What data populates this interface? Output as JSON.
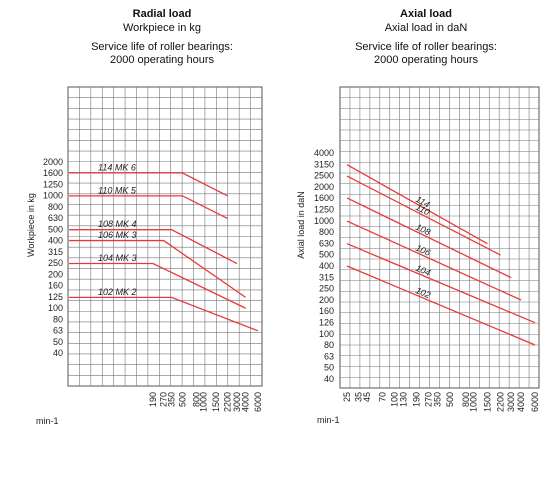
{
  "chart_data": [
    {
      "type": "line",
      "title": "Radial load",
      "subtitle": "Workpiece in kg",
      "note_line1": "Service life of roller bearings:",
      "note_line2": "2000 operating hours",
      "ylabel": "Workpiece in kg",
      "xlabel": "min-1",
      "yscale": "log",
      "xscale": "log",
      "ylim": [
        40,
        2000
      ],
      "x_ticks": [
        "190",
        "270",
        "350",
        "500",
        "800",
        "1000",
        "1500",
        "2200",
        "3000",
        "4000",
        "6000"
      ],
      "y_ticks": [
        "2000",
        "1600",
        "1250",
        "1000",
        "800",
        "630",
        "500",
        "400",
        "315",
        "250",
        "200",
        "160",
        "125",
        "100",
        "80",
        "63",
        "50",
        "40"
      ],
      "color": "#e83a3a",
      "series": [
        {
          "name": "114 MK 6",
          "x": [
            null,
            500,
            2200
          ],
          "y": [
            1600,
            1600,
            1000
          ]
        },
        {
          "name": "110 MK 5",
          "x": [
            null,
            500,
            2200
          ],
          "y": [
            1000,
            1000,
            630
          ]
        },
        {
          "name": "108 MK 4",
          "x": [
            null,
            350,
            3000
          ],
          "y": [
            500,
            500,
            250
          ]
        },
        {
          "name": "106 MK 3",
          "x": [
            null,
            270,
            4000
          ],
          "y": [
            400,
            400,
            125
          ]
        },
        {
          "name": "104 MK 3",
          "x": [
            null,
            190,
            4000
          ],
          "y": [
            250,
            250,
            100
          ]
        },
        {
          "name": "102 MK 2",
          "x": [
            null,
            350,
            6000
          ],
          "y": [
            125,
            125,
            63
          ]
        }
      ]
    },
    {
      "type": "line",
      "title": "Axial load",
      "subtitle": "Axial load in daN",
      "note_line1": "Service life of roller bearings:",
      "note_line2": "2000 operating hours",
      "ylabel": "Axial load in daN",
      "xlabel": "min-1",
      "yscale": "log",
      "xscale": "log",
      "ylim": [
        40,
        4000
      ],
      "x_ticks": [
        "25",
        "35",
        "45",
        "70",
        "100",
        "130",
        "190",
        "270",
        "350",
        "500",
        "800",
        "1000",
        "1500",
        "2200",
        "3000",
        "4000",
        "6000"
      ],
      "y_ticks": [
        "4000",
        "3150",
        "2500",
        "2000",
        "1600",
        "1250",
        "1000",
        "800",
        "630",
        "500",
        "400",
        "315",
        "250",
        "200",
        "160",
        "126",
        "100",
        "80",
        "63",
        "50",
        "40"
      ],
      "color": "#e83a3a",
      "series": [
        {
          "name": "114",
          "x": [
            25,
            1500
          ],
          "y": [
            3150,
            630
          ]
        },
        {
          "name": "110",
          "x": [
            25,
            2200
          ],
          "y": [
            2500,
            500
          ]
        },
        {
          "name": "108",
          "x": [
            25,
            3000
          ],
          "y": [
            1600,
            315
          ]
        },
        {
          "name": "106",
          "x": [
            25,
            4000
          ],
          "y": [
            1000,
            200
          ]
        },
        {
          "name": "104",
          "x": [
            25,
            6000
          ],
          "y": [
            630,
            126
          ]
        },
        {
          "name": "102",
          "x": [
            25,
            6000
          ],
          "y": [
            400,
            80
          ]
        }
      ]
    }
  ]
}
